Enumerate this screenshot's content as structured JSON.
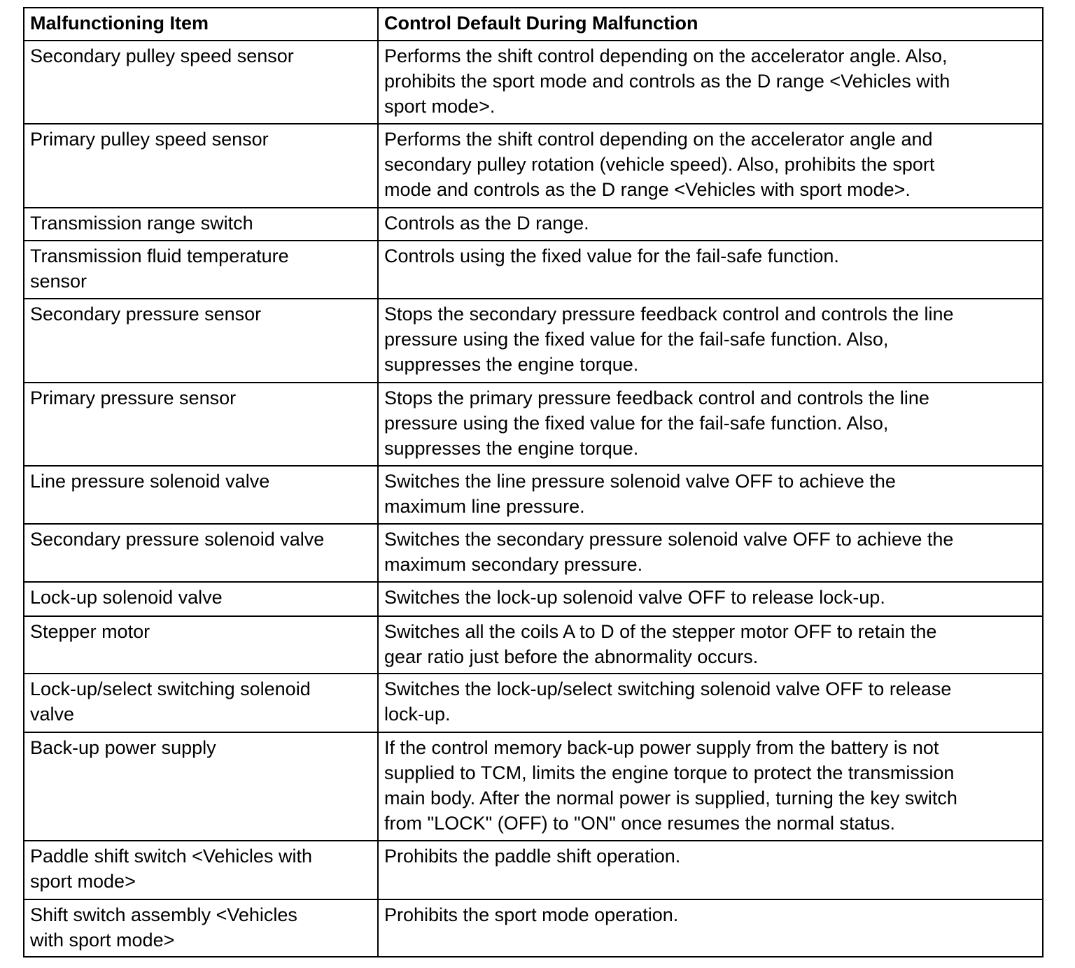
{
  "headers": [
    "Malfunctioning Item",
    "Control Default During Malfunction"
  ],
  "rows": [
    {
      "item": "Secondary pulley speed sensor",
      "control": "Performs the shift control depending on the accelerator angle. Also,\nprohibits the sport mode and controls as the D range <Vehicles with\nsport mode>."
    },
    {
      "item": "Primary pulley speed sensor",
      "control": "Performs the shift control depending on the accelerator angle and\nsecondary pulley rotation (vehicle speed). Also, prohibits the sport\nmode and controls as the D range <Vehicles with sport mode>."
    },
    {
      "item": "Transmission range switch",
      "control": "Controls as the D range."
    },
    {
      "item": "Transmission fluid temperature\nsensor",
      "control": "Controls using the fixed value for the fail-safe function."
    },
    {
      "item": "Secondary pressure sensor",
      "control": "Stops the secondary pressure feedback control and controls the line\npressure using the fixed value for the fail-safe function. Also,\nsuppresses the engine torque."
    },
    {
      "item": "Primary pressure sensor",
      "control": "Stops the primary pressure feedback control and controls the line\npressure using the fixed value for the fail-safe function. Also,\nsuppresses the engine torque."
    },
    {
      "item": "Line pressure solenoid valve",
      "control": "Switches the line pressure solenoid valve OFF to achieve the\nmaximum line pressure."
    },
    {
      "item": "Secondary pressure solenoid valve",
      "control": "Switches the secondary pressure solenoid valve OFF to achieve the\nmaximum secondary pressure."
    },
    {
      "item": "Lock-up solenoid valve",
      "control": "Switches the lock-up solenoid valve OFF to release lock-up."
    },
    {
      "item": "Stepper motor",
      "control": "Switches all the coils A to D of the stepper motor OFF to retain the\ngear ratio just before the abnormality occurs."
    },
    {
      "item": "Lock-up/select switching solenoid\nvalve",
      "control": "Switches the lock-up/select switching solenoid valve OFF to release\nlock-up."
    },
    {
      "item": "Back-up power supply",
      "control": "If the control memory back-up power supply from the battery is not\nsupplied to TCM, limits the engine torque to protect the transmission\nmain body. After the normal power is supplied, turning the key switch\nfrom \"LOCK\" (OFF) to \"ON\" once resumes the normal status."
    },
    {
      "item": "Paddle shift switch <Vehicles with\nsport mode>",
      "control": "Prohibits the paddle shift operation."
    },
    {
      "item": "Shift switch assembly <Vehicles\nwith sport mode>",
      "control": "Prohibits the sport mode operation."
    }
  ]
}
